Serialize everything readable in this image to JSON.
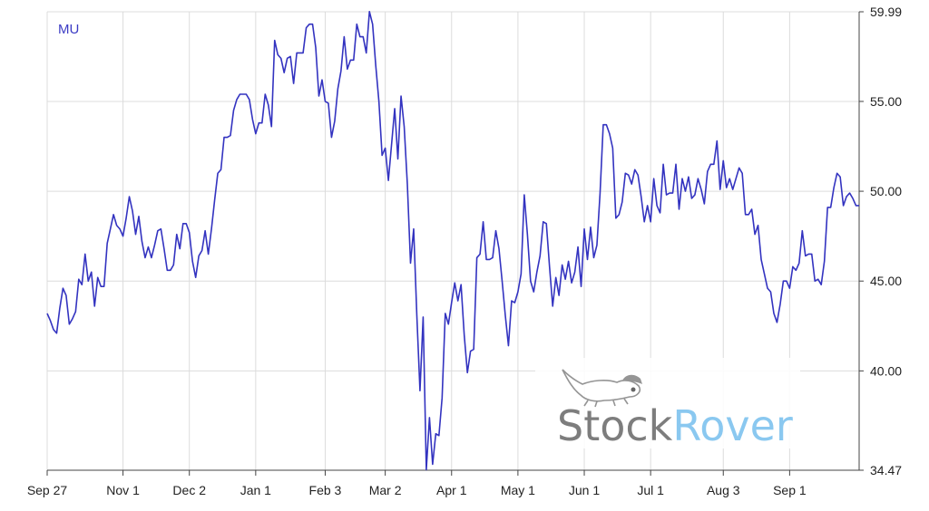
{
  "chart_data": {
    "type": "line",
    "ticker": "MU",
    "series_color": "#3333c0",
    "grid": true,
    "y_axis_position": "right",
    "ylim": [
      34.47,
      59.99
    ],
    "y_ticks": [
      {
        "value": 59.99,
        "label": "59.99"
      },
      {
        "value": 55.0,
        "label": "55.00"
      },
      {
        "value": 50.0,
        "label": "50.00"
      },
      {
        "value": 45.0,
        "label": "45.00"
      },
      {
        "value": 40.0,
        "label": "40.00"
      },
      {
        "value": 34.47,
        "label": "34.47"
      }
    ],
    "x_ticks": [
      "Sep 27",
      "Nov 1",
      "Dec 2",
      "Jan 1",
      "Feb 3",
      "Mar 2",
      "Apr 1",
      "May 1",
      "Jun 1",
      "Jul 1",
      "Aug 3",
      "Sep 1"
    ],
    "x_tick_index": [
      0,
      24,
      45,
      66,
      88,
      107,
      128,
      149,
      170,
      191,
      214,
      235
    ],
    "watermark": {
      "part1": "Stock",
      "part2": "Rover",
      "colors": [
        "#6f6f6f",
        "#7ec3ef"
      ]
    },
    "values": [
      43.2,
      42.8,
      42.3,
      42.1,
      43.5,
      44.6,
      44.2,
      42.6,
      42.9,
      43.3,
      45.1,
      44.8,
      46.5,
      45.0,
      45.5,
      43.6,
      45.2,
      44.7,
      44.7,
      47.1,
      47.9,
      48.7,
      48.1,
      47.9,
      47.5,
      48.5,
      49.7,
      48.9,
      47.6,
      48.6,
      47.2,
      46.3,
      46.9,
      46.3,
      47.0,
      47.8,
      47.9,
      46.8,
      45.6,
      45.6,
      45.9,
      47.6,
      46.8,
      48.2,
      48.2,
      47.7,
      46.1,
      45.2,
      46.4,
      46.7,
      47.8,
      46.5,
      47.9,
      49.5,
      51.0,
      51.2,
      53.0,
      53.0,
      53.1,
      54.5,
      55.1,
      55.4,
      55.4,
      55.4,
      55.1,
      54.0,
      53.2,
      53.8,
      53.8,
      55.4,
      54.8,
      53.6,
      58.4,
      57.6,
      57.4,
      56.6,
      57.4,
      57.5,
      56.0,
      57.7,
      57.7,
      57.7,
      59.1,
      59.3,
      59.3,
      58.0,
      55.3,
      56.2,
      55.0,
      54.9,
      53.0,
      53.9,
      55.7,
      56.7,
      58.6,
      56.8,
      57.3,
      57.3,
      59.3,
      58.6,
      58.6,
      57.7,
      60.0,
      59.3,
      57.0,
      55.0,
      52.0,
      52.4,
      50.6,
      52.6,
      54.6,
      51.8,
      55.3,
      53.6,
      50.4,
      46.0,
      47.9,
      43.1,
      38.9,
      43.0,
      34.5,
      37.4,
      34.8,
      36.5,
      36.4,
      38.5,
      43.2,
      42.6,
      43.8,
      44.9,
      43.9,
      44.8,
      42.0,
      39.9,
      41.1,
      41.2,
      46.3,
      46.5,
      48.3,
      46.2,
      46.2,
      46.3,
      47.8,
      46.8,
      45.0,
      43.1,
      41.4,
      43.9,
      43.8,
      44.4,
      45.4,
      49.8,
      47.6,
      45.0,
      44.4,
      45.5,
      46.4,
      48.3,
      48.2,
      45.8,
      43.6,
      45.2,
      44.2,
      45.9,
      45.1,
      46.1,
      44.9,
      45.5,
      46.9,
      44.7,
      47.9,
      46.2,
      48.0,
      46.3,
      47.0,
      49.9,
      53.7,
      53.7,
      53.2,
      52.4,
      48.5,
      48.7,
      49.4,
      51.0,
      50.9,
      50.4,
      51.2,
      50.9,
      49.7,
      48.3,
      49.2,
      48.3,
      50.7,
      49.2,
      48.8,
      51.5,
      49.8,
      49.9,
      49.9,
      51.5,
      49.0,
      50.7,
      50.0,
      50.8,
      49.6,
      49.8,
      50.7,
      50.1,
      49.3,
      51.1,
      51.5,
      51.5,
      52.8,
      50.1,
      51.7,
      50.2,
      50.7,
      50.1,
      50.7,
      51.3,
      51.0,
      48.7,
      48.7,
      49.0,
      47.6,
      48.1,
      46.2,
      45.4,
      44.6,
      44.4,
      43.2,
      42.7,
      43.7,
      45.0,
      45.0,
      44.6,
      45.8,
      45.6,
      46.0,
      47.8,
      46.4,
      46.5,
      46.5,
      45.0,
      45.1,
      44.8,
      46.1,
      49.1,
      49.1,
      50.2,
      51.0,
      50.8,
      49.2,
      49.7,
      49.9,
      49.6,
      49.2,
      49.2
    ]
  }
}
